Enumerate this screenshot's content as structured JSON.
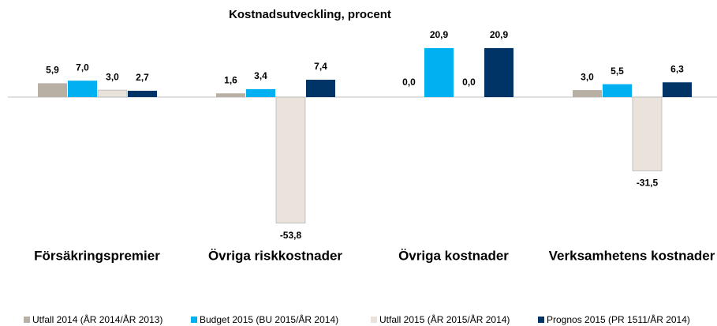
{
  "chart_data": {
    "type": "bar",
    "title": "Kostnadsutveckling, procent",
    "categories": [
      "Försäkringspremier",
      "Övriga riskkostnader",
      "Övriga kostnader",
      "Verksamhetens kostnader"
    ],
    "series": [
      {
        "name": "Utfall 2014 (ÅR 2014/ÅR 2013)",
        "color": "#b8afa5",
        "values": [
          5.9,
          1.6,
          0.0,
          3.0
        ],
        "value_labels": [
          "5,9",
          "1,6",
          "0,0",
          "3,0"
        ]
      },
      {
        "name": "Budget 2015 (BU 2015/ÅR 2014)",
        "color": "#00b0f0",
        "values": [
          7.0,
          3.4,
          20.9,
          5.5
        ],
        "value_labels": [
          "7,0",
          "3,4",
          "20,9",
          "5,5"
        ]
      },
      {
        "name": "Utfall 2015 (ÅR 2015/ÅR 2014)",
        "color": "#e9e3dc",
        "values": [
          3.0,
          -53.8,
          0.0,
          -31.5
        ],
        "value_labels": [
          "3,0",
          "-53,8",
          "0,0",
          "-31,5"
        ]
      },
      {
        "name": "Prognos 2015 (PR 1511/ÅR 2014)",
        "color": "#003366",
        "values": [
          2.7,
          7.4,
          20.9,
          6.3
        ],
        "value_labels": [
          "2,7",
          "7,4",
          "20,9",
          "6,3"
        ]
      }
    ],
    "legend": "bottom"
  }
}
